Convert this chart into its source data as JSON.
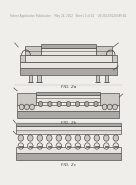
{
  "background_color": "#f0eeeb",
  "header_text": "Patent Application Publication    May 24, 2012   Sheet 2 of 14    US 2012/0126399 A1",
  "header_fontsize": 2.0,
  "fig_labels": [
    "FIG. 2a",
    "FIG. 2b",
    "FIG. 2c"
  ],
  "line_color": "#444444",
  "fill_light": "#e8e5e0",
  "fill_mid": "#ccc9c4",
  "fill_dark": "#aaa8a4",
  "fill_white": "#f8f7f5"
}
